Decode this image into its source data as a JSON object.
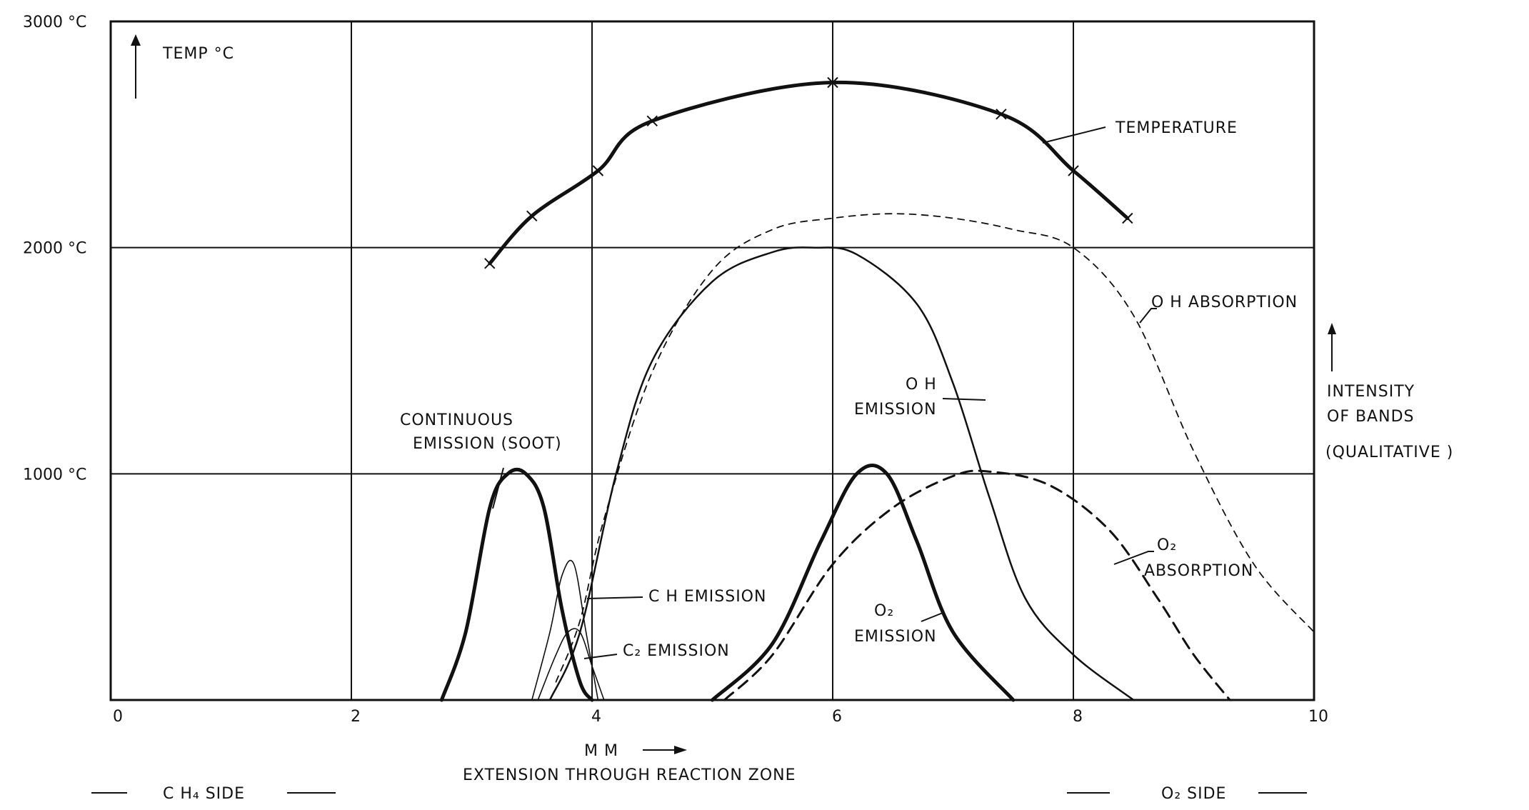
{
  "chart_data": {
    "type": "line",
    "xlim": [
      0,
      10
    ],
    "ylim": [
      0,
      3000
    ],
    "grid": true,
    "x_ticks": [
      {
        "value": 0,
        "label": "0"
      },
      {
        "value": 2,
        "label": "2"
      },
      {
        "value": 4,
        "label": "4"
      },
      {
        "value": 6,
        "label": "6"
      },
      {
        "value": 8,
        "label": "8"
      },
      {
        "value": 10,
        "label": "10"
      }
    ],
    "y_ticks": [
      {
        "value": 1000,
        "label": "1000 °C"
      },
      {
        "value": 2000,
        "label": "2000 °C"
      },
      {
        "value": 3000,
        "label": "3000 °C"
      }
    ],
    "ylabel_left": "TEMP °C",
    "ylabel_right": [
      "INTENSITY",
      "OF BANDS",
      "(QUALITATIVE )"
    ],
    "xlabel_unit": "M M",
    "xlabel": "EXTENSION   THROUGH   REACTION   ZONE",
    "side_left": "C H₄   SIDE",
    "side_right": "O₂  SIDE",
    "series": [
      {
        "name": "TEMPERATURE",
        "style": "thick",
        "markers": true,
        "x": [
          3.15,
          3.5,
          4.05,
          4.5,
          6.0,
          7.4,
          8.0,
          8.45
        ],
        "y": [
          1930,
          2140,
          2340,
          2560,
          2730,
          2590,
          2340,
          2130
        ]
      },
      {
        "name": "OH ABSORPTION",
        "style": "dashed-thin",
        "x": [
          3.7,
          3.9,
          4.1,
          4.5,
          5.0,
          5.5,
          6.0,
          6.5,
          7.0,
          7.5,
          8.0,
          8.5,
          9.0,
          9.5,
          10.0
        ],
        "y": [
          80,
          350,
          800,
          1450,
          1900,
          2080,
          2130,
          2150,
          2130,
          2080,
          2000,
          1700,
          1100,
          600,
          300
        ]
      },
      {
        "name": "OH EMISSION",
        "style": "solid",
        "x": [
          3.65,
          3.9,
          4.2,
          4.5,
          5.0,
          5.5,
          5.85,
          6.2,
          6.7,
          7.0,
          7.3,
          7.6,
          8.0,
          8.5
        ],
        "y": [
          0,
          300,
          1000,
          1500,
          1850,
          1980,
          2000,
          1970,
          1750,
          1400,
          900,
          450,
          200,
          0
        ]
      },
      {
        "name": "CONTINUOUS EMISSION (SOOT)",
        "style": "thick",
        "x": [
          2.75,
          2.95,
          3.15,
          3.3,
          3.45,
          3.6,
          3.75,
          3.9,
          4.0
        ],
        "y": [
          0,
          300,
          850,
          1000,
          1000,
          850,
          400,
          80,
          0
        ]
      },
      {
        "name": "CH EMISSION",
        "style": "thin",
        "x": [
          3.5,
          3.65,
          3.75,
          3.85,
          3.95,
          4.05
        ],
        "y": [
          0,
          300,
          550,
          600,
          300,
          0
        ]
      },
      {
        "name": "C₂ EMISSION",
        "style": "thin",
        "x": [
          3.55,
          3.7,
          3.8,
          3.9,
          4.0,
          4.1
        ],
        "y": [
          0,
          200,
          300,
          300,
          150,
          0
        ]
      },
      {
        "name": "O₂ EMISSION",
        "style": "thick",
        "x": [
          5.0,
          5.5,
          5.9,
          6.2,
          6.45,
          6.7,
          7.0,
          7.5
        ],
        "y": [
          0,
          250,
          700,
          1000,
          1000,
          700,
          300,
          0
        ]
      },
      {
        "name": "O₂ ABSORPTION",
        "style": "dashed",
        "x": [
          5.1,
          5.5,
          6.0,
          6.5,
          7.0,
          7.3,
          7.8,
          8.3,
          8.7,
          9.0,
          9.3
        ],
        "y": [
          0,
          200,
          600,
          850,
          990,
          1010,
          950,
          750,
          450,
          200,
          0
        ]
      }
    ],
    "annotations": [
      {
        "lines": [
          "TEMPERATURE"
        ]
      },
      {
        "lines": [
          "O H   ABSORPTION"
        ]
      },
      {
        "lines": [
          "O H",
          "EMISSION"
        ]
      },
      {
        "lines": [
          "CONTINUOUS",
          "EMISSION  (SOOT)"
        ]
      },
      {
        "lines": [
          "C H   EMISSION"
        ]
      },
      {
        "lines": [
          "C₂  EMISSION"
        ]
      },
      {
        "lines": [
          "O₂",
          "EMISSION"
        ]
      },
      {
        "lines": [
          "O₂",
          "ABSORPTION"
        ]
      }
    ]
  }
}
